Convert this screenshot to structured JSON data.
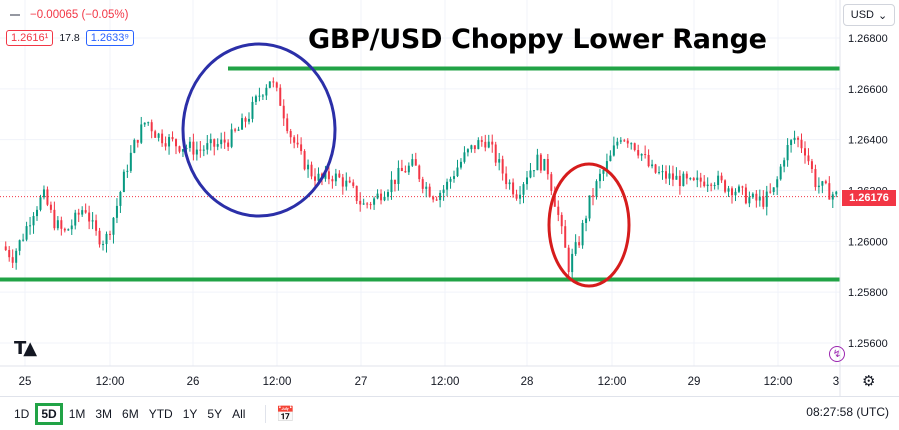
{
  "legend": {
    "change": "−0.00065 (−0.05%)",
    "bid": "1.2616¹",
    "spread": "17.8",
    "ask": "1.2633⁹"
  },
  "annotation_title": "GBP/USD Choppy Lower Range",
  "currency_label": "USD",
  "last_price": "1.26176",
  "toolbar": {
    "ranges": [
      "1D",
      "5D",
      "1M",
      "3M",
      "6M",
      "YTD",
      "1Y",
      "5Y",
      "All"
    ],
    "active_range": "5D"
  },
  "clock": "08:27:58 (UTC)",
  "colors": {
    "up": "#089981",
    "down": "#f23645",
    "level": "#21a346",
    "circle_blue": "#2b2fa8",
    "circle_red": "#d61c1c"
  },
  "icons": [
    "tradingview-logo-icon",
    "chevron-down-icon",
    "settings-icon",
    "calendar-range-icon",
    "lightning-icon"
  ],
  "chart_data": {
    "type": "candlestick",
    "ylim": [
      1.255,
      1.269
    ],
    "y_ticks": [
      "1.26800",
      "1.26600",
      "1.26400",
      "1.26200",
      "1.26000",
      "1.25800",
      "1.25600"
    ],
    "y_tick_values": [
      1.268,
      1.266,
      1.264,
      1.262,
      1.26,
      1.258,
      1.256
    ],
    "x_ticks": [
      "25",
      "12:00",
      "26",
      "12:00",
      "27",
      "12:00",
      "28",
      "12:00",
      "29",
      "12:00",
      "3"
    ],
    "resistance": 1.2668,
    "support": 1.2585,
    "last_price": 1.26176,
    "close_path": [
      1.2598,
      1.2594,
      1.2602,
      1.2612,
      1.2618,
      1.2608,
      1.2603,
      1.2608,
      1.2614,
      1.2603,
      1.26,
      1.2612,
      1.2628,
      1.264,
      1.2648,
      1.2642,
      1.264,
      1.2638,
      1.2637,
      1.2636,
      1.2637,
      1.2638,
      1.264,
      1.2644,
      1.265,
      1.2658,
      1.2664,
      1.2655,
      1.2642,
      1.2633,
      1.2627,
      1.2624,
      1.2626,
      1.2624,
      1.262,
      1.2614,
      1.2616,
      1.262,
      1.2624,
      1.2628,
      1.263,
      1.2622,
      1.2618,
      1.2621,
      1.2628,
      1.2634,
      1.2638,
      1.264,
      1.2632,
      1.2624,
      1.2619,
      1.2627,
      1.2632,
      1.2628,
      1.261,
      1.259,
      1.26,
      1.2615,
      1.2625,
      1.2632,
      1.2642,
      1.264,
      1.2635,
      1.2628,
      1.2626,
      1.2625,
      1.2624,
      1.2622,
      1.2624,
      1.2625,
      1.2622,
      1.2621,
      1.2618,
      1.2616,
      1.2616,
      1.262,
      1.2635,
      1.2641,
      1.2636,
      1.2623,
      1.262,
      1.2618
    ]
  }
}
